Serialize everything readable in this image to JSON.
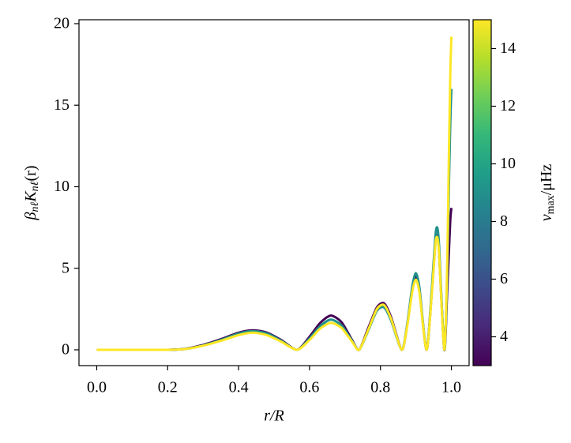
{
  "chart_data": {
    "type": "line",
    "xlabel": "r/R",
    "ylabel": [
      {
        "text": "β",
        "sub": "nℓ"
      },
      {
        "text": "K",
        "sub": "nℓ"
      },
      {
        "text": "(r)"
      }
    ],
    "x": [
      0,
      0.1,
      0.2,
      0.25,
      0.3,
      0.35,
      0.4,
      0.44,
      0.48,
      0.52,
      0.565,
      0.6,
      0.63,
      0.66,
      0.69,
      0.72,
      0.74,
      0.765,
      0.79,
      0.81,
      0.83,
      0.86,
      0.875,
      0.89,
      0.9,
      0.91,
      0.93,
      0.945,
      0.955,
      0.96,
      0.965,
      0.98,
      0.988,
      0.993,
      0.997,
      1.0
    ],
    "series": [
      {
        "color": "#440154",
        "values": [
          0,
          0,
          0,
          0.06,
          0.3,
          0.65,
          1.05,
          1.2,
          1.05,
          0.6,
          0,
          0.8,
          1.65,
          2.1,
          1.7,
          0.6,
          0,
          1.3,
          2.6,
          2.85,
          2.0,
          0,
          1.45,
          3.8,
          4.5,
          3.6,
          0,
          3.6,
          6.6,
          7.0,
          6.1,
          0,
          3.5,
          6,
          8,
          8.7
        ]
      },
      {
        "color": "#21918c",
        "values": [
          0,
          0,
          0,
          0.05,
          0.27,
          0.6,
          1.0,
          1.15,
          1.0,
          0.55,
          0,
          0.7,
          1.45,
          1.85,
          1.5,
          0.55,
          0,
          1.15,
          2.4,
          2.6,
          1.8,
          0,
          1.5,
          3.9,
          4.7,
          3.8,
          0,
          3.8,
          7.0,
          7.5,
          6.5,
          0,
          4.5,
          10,
          14,
          16
        ]
      },
      {
        "color": "#fde725",
        "values": [
          0,
          0,
          0,
          0.05,
          0.25,
          0.55,
          0.9,
          1.05,
          0.9,
          0.5,
          0,
          0.6,
          1.3,
          1.65,
          1.35,
          0.5,
          0,
          1.2,
          2.5,
          2.75,
          1.9,
          0,
          1.4,
          3.6,
          4.3,
          3.5,
          0,
          3.5,
          6.5,
          6.9,
          6.0,
          0,
          5,
          12,
          17,
          19.2
        ]
      }
    ],
    "xlim": [
      -0.05,
      1.05
    ],
    "xticks": [
      {
        "value": 0,
        "label": "0.0"
      },
      {
        "value": 0.2,
        "label": "0.2"
      },
      {
        "value": 0.4,
        "label": "0.4"
      },
      {
        "value": 0.6,
        "label": "0.6"
      },
      {
        "value": 0.8,
        "label": "0.8"
      },
      {
        "value": 1,
        "label": "1.0"
      }
    ],
    "ylim": [
      -0.97,
      20.24
    ],
    "yticks": [
      0,
      5,
      10,
      15,
      20
    ],
    "colorbar": {
      "label": [
        {
          "text": "ν",
          "sub": "max"
        },
        {
          "text": "/μHz"
        }
      ],
      "lim": [
        3,
        15
      ],
      "ticks": [
        4,
        6,
        8,
        10,
        12,
        14
      ],
      "colors": [
        "#440154",
        "#482878",
        "#3e4989",
        "#31688e",
        "#26828e",
        "#1f9e89",
        "#35b779",
        "#6ece58",
        "#b5de2b",
        "#fde725"
      ]
    }
  }
}
